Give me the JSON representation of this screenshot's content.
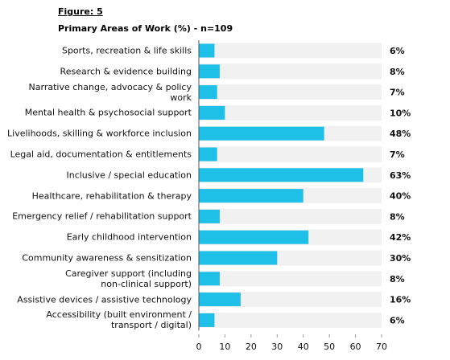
{
  "figure_label": "Figure: 5",
  "chart_data": {
    "type": "hbar",
    "title": "Primary Areas of Work (%) - n=109",
    "categories": [
      "Sports, recreation & life skills",
      "Research & evidence building",
      "Narrative change, advocacy & policy work",
      "Mental health & psychosocial support",
      "Livelihoods, skilling & workforce inclusion",
      "Legal aid, documentation & entitlements",
      "Inclusive / special education",
      "Healthcare, rehabilitation & therapy",
      "Emergency relief / rehabilitation support",
      "Early childhood intervention",
      "Community awareness & sensitization",
      "Caregiver support (including\nnon-clinical support)",
      "Assistive devices / assistive technology",
      "Accessibility (built environment /\ntransport / digital)"
    ],
    "values": [
      6,
      8,
      7,
      10,
      48,
      7,
      63,
      40,
      8,
      42,
      30,
      8,
      16,
      6
    ],
    "value_labels": [
      "6%",
      "8%",
      "7%",
      "10%",
      "48%",
      "7%",
      "63%",
      "40%",
      "8%",
      "42%",
      "30%",
      "8%",
      "16%",
      "6%"
    ],
    "color": "#1ec0e8",
    "xlim": [
      0,
      70
    ],
    "xticks": [
      0,
      10,
      20,
      30,
      40,
      50,
      60,
      70
    ]
  }
}
